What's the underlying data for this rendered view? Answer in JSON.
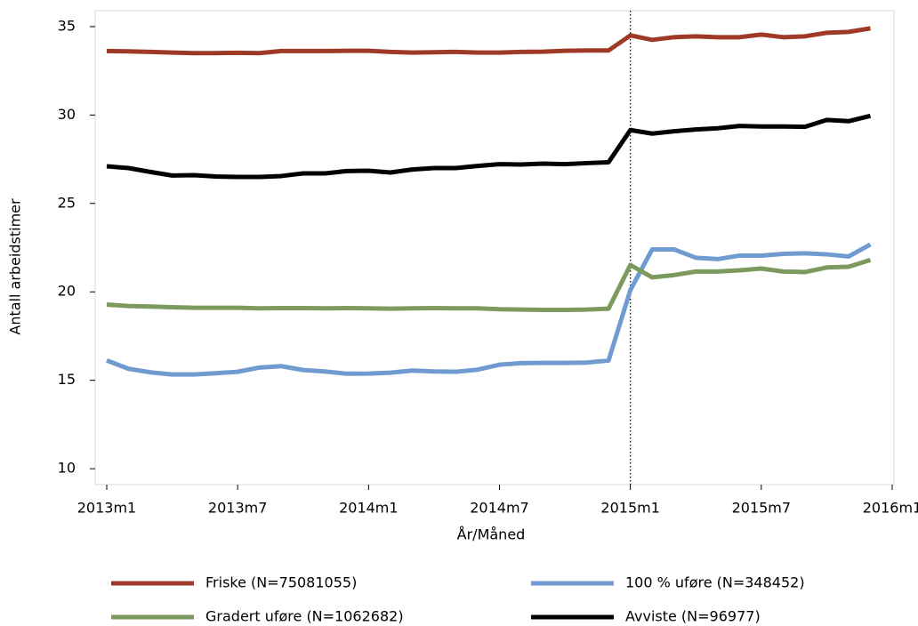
{
  "chart_data": {
    "type": "line",
    "x_label": "År/Måned",
    "y_label": "Antall arbeidstimer",
    "x": [
      "2013m1",
      "2013m2",
      "2013m3",
      "2013m4",
      "2013m5",
      "2013m6",
      "2013m7",
      "2013m8",
      "2013m9",
      "2013m10",
      "2013m11",
      "2013m12",
      "2014m1",
      "2014m2",
      "2014m3",
      "2014m4",
      "2014m5",
      "2014m6",
      "2014m7",
      "2014m8",
      "2014m9",
      "2014m10",
      "2014m11",
      "2014m12",
      "2015m1",
      "2015m2",
      "2015m3",
      "2015m4",
      "2015m5",
      "2015m6",
      "2015m7",
      "2015m8",
      "2015m9",
      "2015m10",
      "2015m11",
      "2015m12"
    ],
    "xlim": [
      "2013m1",
      "2016m1"
    ],
    "xticks": [
      "2013m1",
      "2013m7",
      "2014m1",
      "2014m7",
      "2015m1",
      "2015m7",
      "2016m1"
    ],
    "ylim": [
      9.1,
      35.9
    ],
    "yticks": [
      10,
      15,
      20,
      25,
      30,
      35
    ],
    "vline": "2015m1",
    "legend": "bottom",
    "series": [
      {
        "name": "Friske (N=75081055)",
        "color": "#9e3a26",
        "values": [
          33.62,
          33.6,
          33.57,
          33.53,
          33.5,
          33.5,
          33.52,
          33.5,
          33.62,
          33.62,
          33.62,
          33.63,
          33.63,
          33.57,
          33.53,
          33.55,
          33.57,
          33.53,
          33.53,
          33.57,
          33.58,
          33.63,
          33.65,
          33.65,
          34.5,
          34.25,
          34.4,
          34.45,
          34.4,
          34.4,
          34.55,
          34.4,
          34.45,
          34.65,
          34.7,
          34.9
        ]
      },
      {
        "name": "100 % uføre (N=348452)",
        "color": "#6f9bd1",
        "values": [
          16.12,
          15.65,
          15.45,
          15.33,
          15.33,
          15.4,
          15.48,
          15.72,
          15.8,
          15.58,
          15.5,
          15.37,
          15.38,
          15.43,
          15.55,
          15.5,
          15.48,
          15.6,
          15.88,
          15.97,
          15.98,
          15.98,
          16.0,
          16.12,
          20.1,
          22.4,
          22.4,
          21.93,
          21.85,
          22.05,
          22.05,
          22.15,
          22.18,
          22.12,
          22.0,
          22.68
        ]
      },
      {
        "name": "Gradert uføre (N=1062682)",
        "color": "#7c9a5e",
        "values": [
          19.28,
          19.2,
          19.17,
          19.13,
          19.1,
          19.1,
          19.1,
          19.07,
          19.08,
          19.08,
          19.07,
          19.08,
          19.07,
          19.05,
          19.07,
          19.08,
          19.07,
          19.07,
          19.02,
          19.0,
          18.98,
          18.98,
          19.0,
          19.05,
          21.52,
          20.82,
          20.95,
          21.15,
          21.15,
          21.22,
          21.32,
          21.15,
          21.12,
          21.38,
          21.42,
          21.8
        ]
      },
      {
        "name": "Avviste (N=96977)",
        "color": "#000000",
        "values": [
          27.1,
          27.0,
          26.78,
          26.58,
          26.6,
          26.52,
          26.5,
          26.5,
          26.55,
          26.7,
          26.7,
          26.83,
          26.85,
          26.75,
          26.92,
          27.0,
          27.0,
          27.12,
          27.22,
          27.2,
          27.25,
          27.22,
          27.28,
          27.33,
          29.15,
          28.95,
          29.08,
          29.18,
          29.25,
          29.38,
          29.35,
          29.35,
          29.33,
          29.72,
          29.65,
          29.95
        ]
      }
    ]
  }
}
